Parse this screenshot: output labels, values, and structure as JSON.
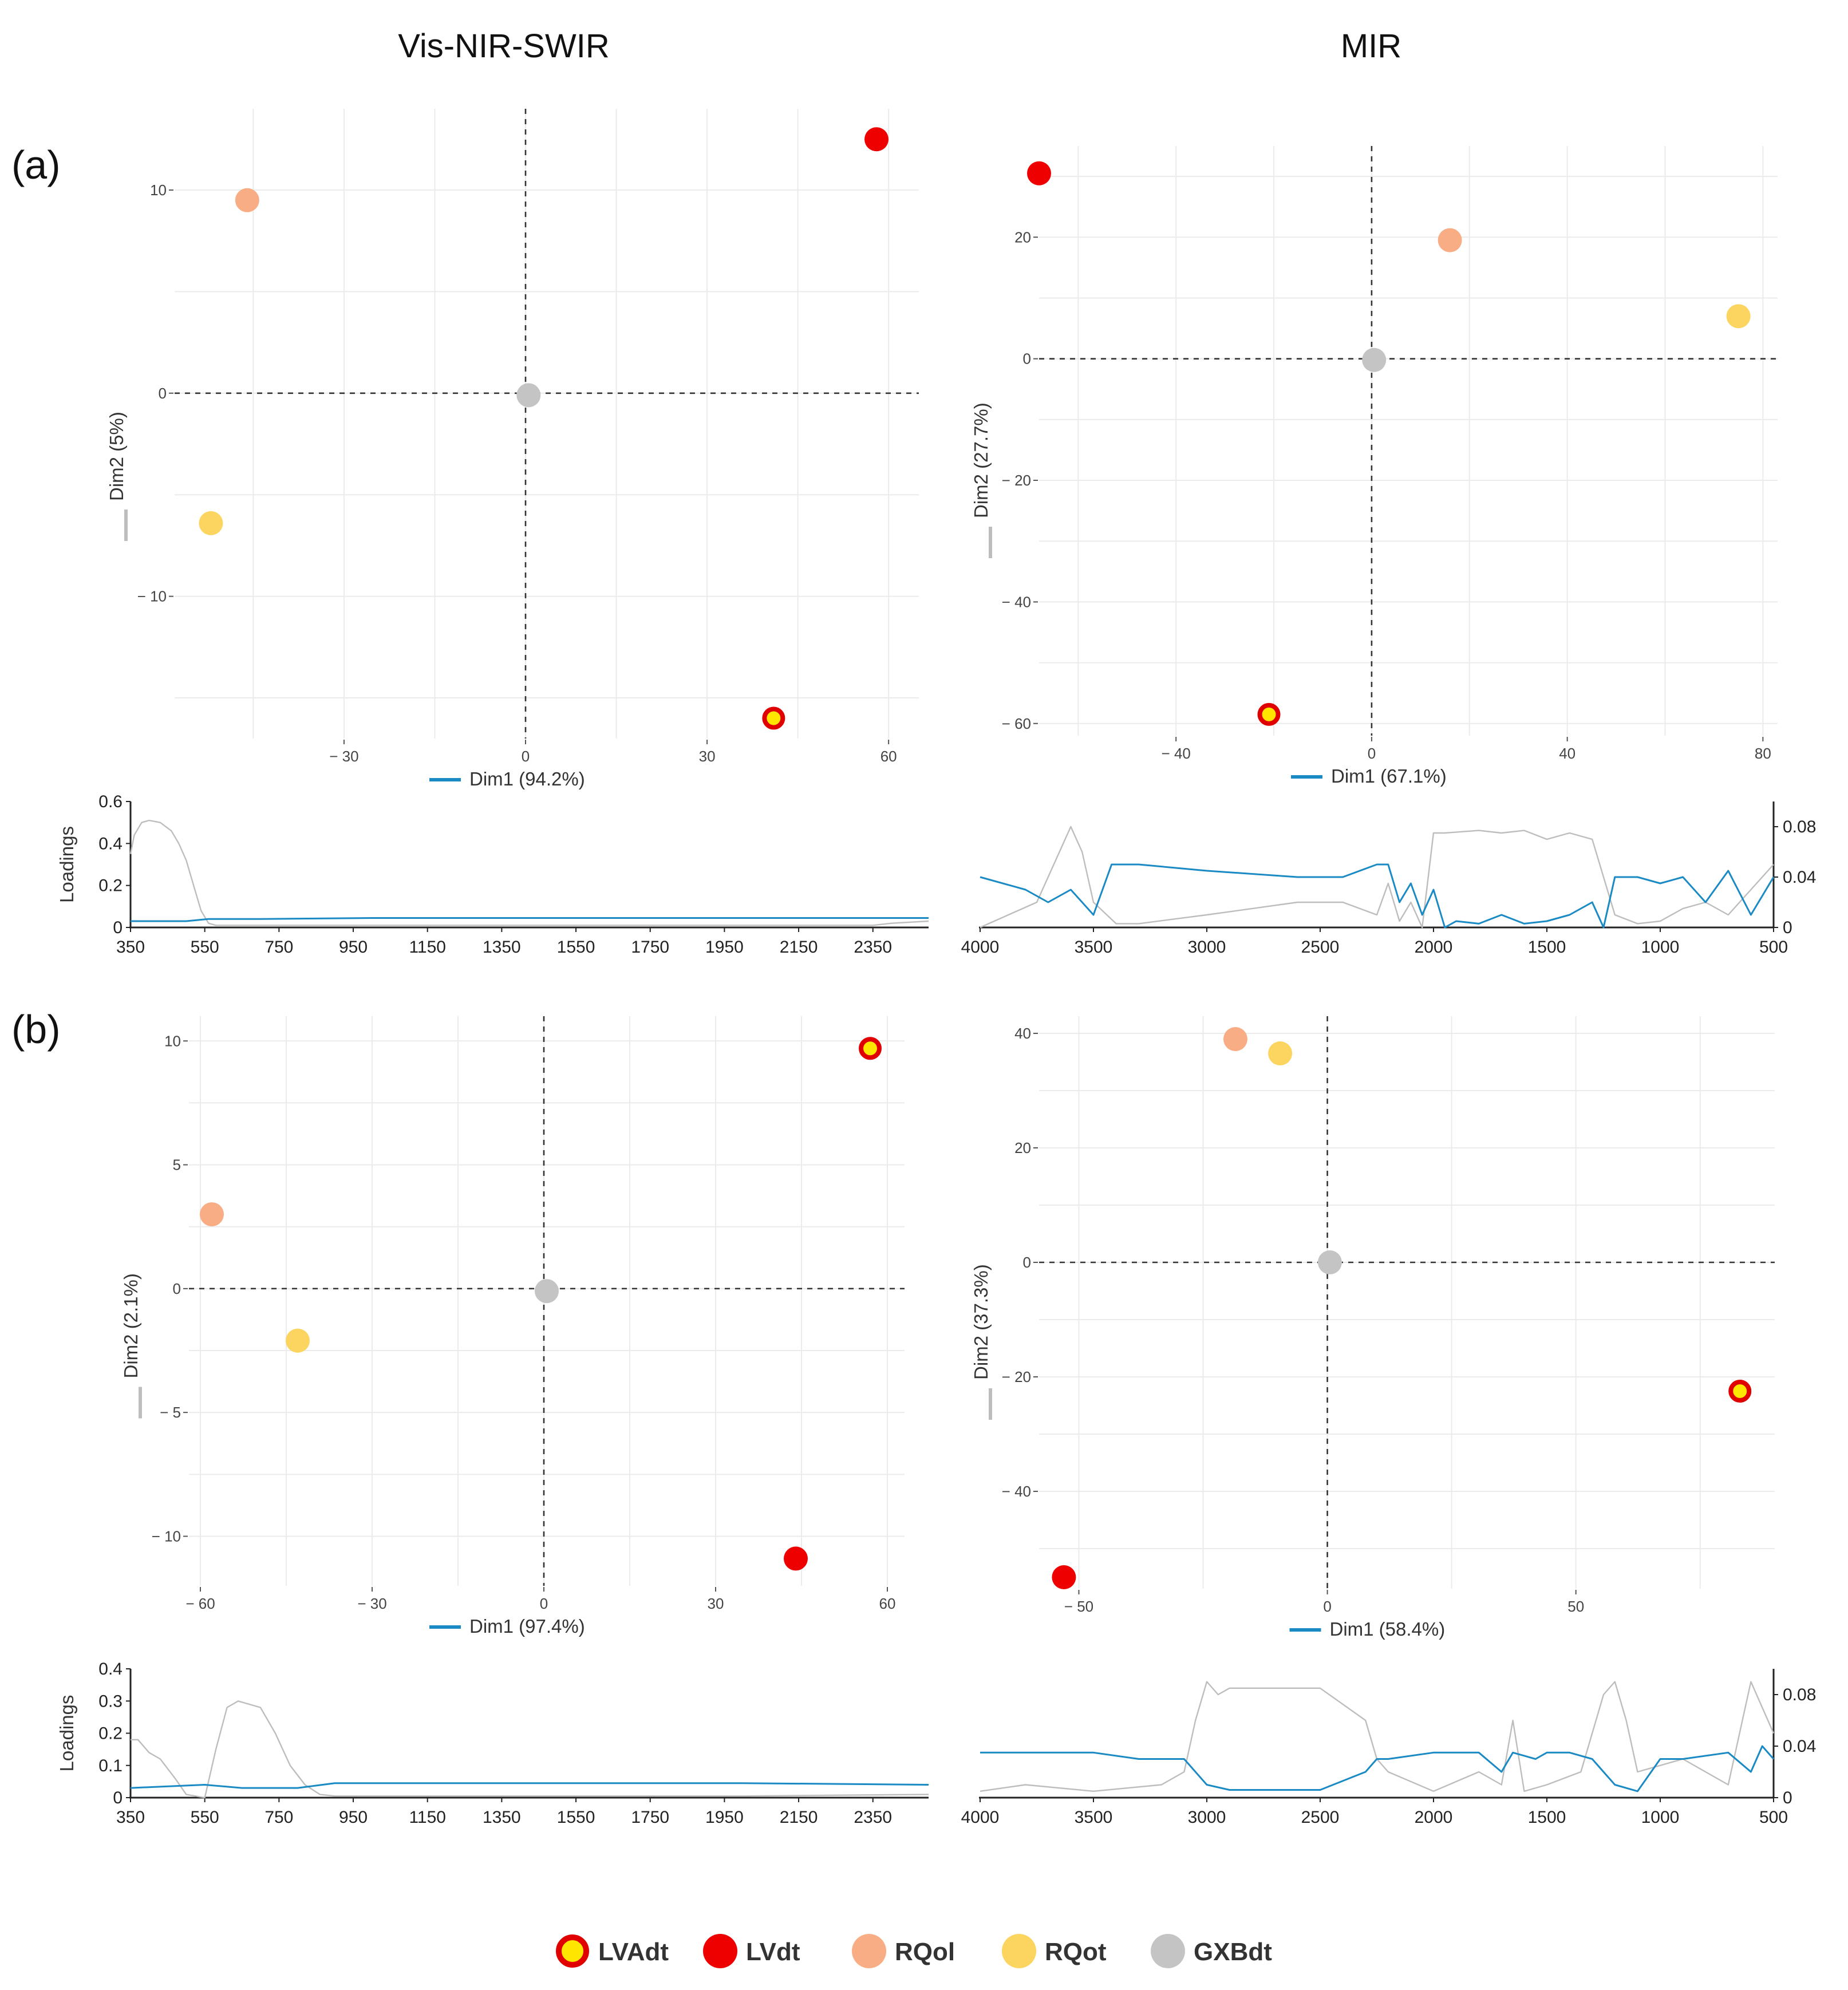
{
  "column_titles": [
    "Vis-NIR-SWIR",
    "MIR"
  ],
  "panel_labels": [
    "(a)",
    "(b)"
  ],
  "legend": [
    {
      "label": "LVAdt",
      "color": "#ffe600",
      "edge": "#e00000"
    },
    {
      "label": "LVdt",
      "color": "#ee0000",
      "edge": "#ee0000"
    },
    {
      "label": "RQol",
      "color": "#f8ad85",
      "edge": "#f8ad85"
    },
    {
      "label": "RQot",
      "color": "#fcd460",
      "edge": "#fcd460"
    },
    {
      "label": "GXBdt",
      "color": "#c4c4c4",
      "edge": "#c4c4c4"
    }
  ],
  "colors": {
    "series_blue": "#1a8ac4",
    "series_grey": "#bdbdbd",
    "zero_line": "#333333"
  },
  "chart_data": [
    {
      "id": "a-visnir",
      "type": "scatter",
      "xlabel": "Dim1 (94.2%)",
      "ylabel": "Dim2 (5%)",
      "xlim": [
        -58,
        65
      ],
      "ylim": [
        -17,
        14
      ],
      "xticks": [
        -30,
        0,
        30,
        60
      ],
      "yticks": [
        -10,
        0,
        10
      ],
      "points": [
        {
          "group": "LVAdt",
          "x": 41,
          "y": -16
        },
        {
          "group": "LVdt",
          "x": 58,
          "y": 12.5
        },
        {
          "group": "RQol",
          "x": -46,
          "y": 9.5
        },
        {
          "group": "RQot",
          "x": -52,
          "y": -6.4
        },
        {
          "group": "GXBdt",
          "x": 0.5,
          "y": -0.1
        }
      ]
    },
    {
      "id": "a-mir",
      "type": "scatter",
      "xlabel": "Dim1 (67.1%)",
      "ylabel": "Dim2 (27.7%)",
      "xlim": [
        -68,
        83
      ],
      "ylim": [
        -62,
        35
      ],
      "xticks": [
        -40,
        0,
        40,
        80
      ],
      "yticks": [
        -60,
        -40,
        -20,
        0,
        20
      ],
      "points": [
        {
          "group": "LVAdt",
          "x": -21,
          "y": -58.5
        },
        {
          "group": "LVdt",
          "x": -68,
          "y": 30.5
        },
        {
          "group": "RQol",
          "x": 16,
          "y": 19.5
        },
        {
          "group": "RQot",
          "x": 75,
          "y": 7
        },
        {
          "group": "GXBdt",
          "x": 0.5,
          "y": -0.2
        }
      ]
    },
    {
      "id": "b-visnir",
      "type": "scatter",
      "xlabel": "Dim1 (97.4%)",
      "ylabel": "Dim2 (2.1%)",
      "xlim": [
        -62,
        63
      ],
      "ylim": [
        -12,
        11
      ],
      "xticks": [
        -60,
        -30,
        0,
        30,
        60
      ],
      "yticks": [
        -10,
        -5,
        0,
        5,
        10
      ],
      "points": [
        {
          "group": "LVAdt",
          "x": 57,
          "y": 9.7
        },
        {
          "group": "LVdt",
          "x": 44,
          "y": -10.9
        },
        {
          "group": "RQol",
          "x": -58,
          "y": 3
        },
        {
          "group": "RQot",
          "x": -43,
          "y": -2.1
        },
        {
          "group": "GXBdt",
          "x": 0.5,
          "y": -0.1
        }
      ]
    },
    {
      "id": "b-mir",
      "type": "scatter",
      "xlabel": "Dim1 (58.4%)",
      "ylabel": "Dim2 (37.3%)",
      "xlim": [
        -58,
        90
      ],
      "ylim": [
        -57,
        43
      ],
      "xticks": [
        -50,
        0,
        50
      ],
      "yticks": [
        -40,
        -20,
        0,
        20,
        40
      ],
      "points": [
        {
          "group": "LVAdt",
          "x": 83,
          "y": -22.5
        },
        {
          "group": "LVdt",
          "x": -53,
          "y": -55
        },
        {
          "group": "RQol",
          "x": -18.5,
          "y": 39
        },
        {
          "group": "RQot",
          "x": -9.5,
          "y": 36.5
        },
        {
          "group": "GXBdt",
          "x": 0.5,
          "y": 0
        }
      ]
    },
    {
      "id": "a-visnir-loadings",
      "type": "line",
      "ylabel": "Loadings",
      "xlim": [
        350,
        2500
      ],
      "ylim": [
        0,
        0.6
      ],
      "xticks": [
        350,
        550,
        750,
        950,
        1150,
        1350,
        1550,
        1750,
        1950,
        2150,
        2350
      ],
      "yticks": [
        0,
        0.2,
        0.4,
        0.6
      ],
      "series": [
        {
          "name": "Dim1",
          "color": "#1a8ac4",
          "x": [
            350,
            500,
            560,
            700,
            1000,
            1500,
            2000,
            2500
          ],
          "y": [
            0.03,
            0.03,
            0.04,
            0.04,
            0.045,
            0.045,
            0.045,
            0.045
          ]
        },
        {
          "name": "Dim2",
          "color": "#bdbdbd",
          "x": [
            350,
            360,
            380,
            400,
            430,
            460,
            480,
            500,
            520,
            540,
            560,
            580,
            650,
            1000,
            1500,
            2000,
            2350,
            2400,
            2500
          ],
          "y": [
            0.35,
            0.44,
            0.5,
            0.51,
            0.5,
            0.46,
            0.4,
            0.32,
            0.2,
            0.08,
            0.02,
            0.01,
            0.01,
            0.01,
            0.01,
            0.01,
            0.01,
            0.02,
            0.03
          ]
        }
      ]
    },
    {
      "id": "a-mir-loadings",
      "type": "line",
      "xlim": [
        4000,
        500
      ],
      "ylim": [
        0,
        0.1
      ],
      "xticks": [
        4000,
        3500,
        3000,
        2500,
        2000,
        1500,
        1000,
        500
      ],
      "yticks": [
        0,
        0.04,
        0.08
      ],
      "series": [
        {
          "name": "Dim1",
          "color": "#1a8ac4",
          "x": [
            4000,
            3800,
            3700,
            3600,
            3500,
            3420,
            3300,
            3000,
            2600,
            2400,
            2250,
            2200,
            2150,
            2100,
            2050,
            2000,
            1950,
            1900,
            1800,
            1700,
            1600,
            1500,
            1400,
            1300,
            1250,
            1200,
            1100,
            1000,
            900,
            800,
            700,
            600,
            500
          ],
          "y": [
            0.04,
            0.03,
            0.02,
            0.03,
            0.01,
            0.05,
            0.05,
            0.045,
            0.04,
            0.04,
            0.05,
            0.05,
            0.02,
            0.035,
            0.01,
            0.03,
            0.0,
            0.005,
            0.003,
            0.01,
            0.003,
            0.005,
            0.01,
            0.02,
            0.0,
            0.04,
            0.04,
            0.035,
            0.04,
            0.02,
            0.045,
            0.01,
            0.04
          ]
        },
        {
          "name": "Dim2",
          "color": "#bdbdbd",
          "x": [
            4000,
            3750,
            3650,
            3600,
            3550,
            3500,
            3400,
            3300,
            3000,
            2600,
            2400,
            2250,
            2200,
            2150,
            2100,
            2050,
            2000,
            1950,
            1800,
            1700,
            1600,
            1500,
            1400,
            1300,
            1250,
            1200,
            1100,
            1000,
            900,
            800,
            700,
            600,
            500
          ],
          "y": [
            0.0,
            0.02,
            0.06,
            0.08,
            0.06,
            0.02,
            0.003,
            0.003,
            0.01,
            0.02,
            0.02,
            0.01,
            0.035,
            0.005,
            0.02,
            0.0,
            0.075,
            0.075,
            0.077,
            0.075,
            0.077,
            0.07,
            0.075,
            0.07,
            0.04,
            0.01,
            0.003,
            0.005,
            0.015,
            0.02,
            0.01,
            0.03,
            0.05
          ]
        }
      ]
    },
    {
      "id": "b-visnir-loadings",
      "type": "line",
      "ylabel": "Loadings",
      "xlim": [
        350,
        2500
      ],
      "ylim": [
        0,
        0.4
      ],
      "xticks": [
        350,
        550,
        750,
        950,
        1150,
        1350,
        1550,
        1750,
        1950,
        2150,
        2350
      ],
      "yticks": [
        0,
        0.1,
        0.2,
        0.3,
        0.4
      ],
      "series": [
        {
          "name": "Dim1",
          "color": "#1a8ac4",
          "x": [
            350,
            550,
            650,
            800,
            900,
            1200,
            1600,
            2000,
            2500
          ],
          "y": [
            0.03,
            0.04,
            0.03,
            0.03,
            0.045,
            0.045,
            0.045,
            0.045,
            0.04
          ]
        },
        {
          "name": "Dim2",
          "color": "#bdbdbd",
          "x": [
            350,
            370,
            400,
            430,
            470,
            500,
            550,
            580,
            610,
            640,
            700,
            740,
            780,
            820,
            860,
            900,
            1200,
            1600,
            2000,
            2500
          ],
          "y": [
            0.18,
            0.18,
            0.14,
            0.12,
            0.06,
            0.01,
            0.0,
            0.15,
            0.28,
            0.3,
            0.28,
            0.2,
            0.1,
            0.04,
            0.01,
            0.005,
            0.005,
            0.005,
            0.005,
            0.01
          ]
        }
      ]
    },
    {
      "id": "b-mir-loadings",
      "type": "line",
      "xlim": [
        4000,
        500
      ],
      "ylim": [
        0,
        0.1
      ],
      "xticks": [
        4000,
        3500,
        3000,
        2500,
        2000,
        1500,
        1000,
        500
      ],
      "yticks": [
        0,
        0.04,
        0.08
      ],
      "series": [
        {
          "name": "Dim1",
          "color": "#1a8ac4",
          "x": [
            4000,
            3700,
            3500,
            3300,
            3100,
            3050,
            3000,
            2900,
            2700,
            2500,
            2300,
            2250,
            2200,
            2000,
            1800,
            1700,
            1650,
            1550,
            1500,
            1400,
            1300,
            1200,
            1100,
            1000,
            900,
            700,
            600,
            550,
            500
          ],
          "y": [
            0.035,
            0.035,
            0.035,
            0.03,
            0.03,
            0.02,
            0.01,
            0.006,
            0.006,
            0.006,
            0.02,
            0.03,
            0.03,
            0.035,
            0.035,
            0.02,
            0.035,
            0.03,
            0.035,
            0.035,
            0.03,
            0.01,
            0.005,
            0.03,
            0.03,
            0.035,
            0.02,
            0.04,
            0.03
          ]
        },
        {
          "name": "Dim2",
          "color": "#bdbdbd",
          "x": [
            4000,
            3800,
            3500,
            3200,
            3100,
            3050,
            3000,
            2950,
            2900,
            2700,
            2500,
            2300,
            2250,
            2200,
            2000,
            1800,
            1700,
            1650,
            1600,
            1500,
            1350,
            1250,
            1200,
            1150,
            1100,
            900,
            700,
            600,
            500
          ],
          "y": [
            0.005,
            0.01,
            0.005,
            0.01,
            0.02,
            0.06,
            0.09,
            0.08,
            0.085,
            0.085,
            0.085,
            0.06,
            0.03,
            0.02,
            0.005,
            0.02,
            0.01,
            0.06,
            0.005,
            0.01,
            0.02,
            0.08,
            0.09,
            0.06,
            0.02,
            0.03,
            0.01,
            0.09,
            0.05
          ]
        }
      ]
    }
  ]
}
